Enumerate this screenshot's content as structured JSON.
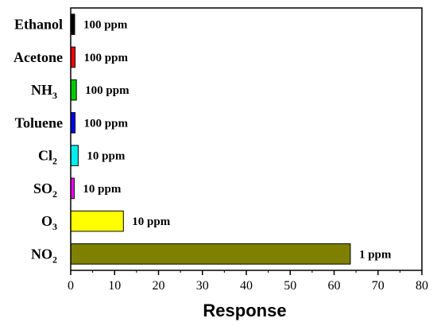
{
  "chart_data": {
    "type": "bar",
    "orientation": "horizontal",
    "categories": [
      {
        "label": "Ethanol",
        "sub": ""
      },
      {
        "label": "Acetone",
        "sub": ""
      },
      {
        "label": "NH",
        "sub": "3"
      },
      {
        "label": "Toluene",
        "sub": ""
      },
      {
        "label": "Cl",
        "sub": "2"
      },
      {
        "label": "SO",
        "sub": "2"
      },
      {
        "label": "O",
        "sub": "3"
      },
      {
        "label": "NO",
        "sub": "2"
      }
    ],
    "values": [
      0.9,
      1.0,
      1.3,
      1.0,
      1.7,
      0.8,
      12.0,
      63.7
    ],
    "bar_colors": [
      "#000000",
      "#ff0000",
      "#00cc00",
      "#0000ff",
      "#00eeee",
      "#ff00ff",
      "#ffff00",
      "#808000"
    ],
    "data_labels": [
      "100 ppm",
      "100 ppm",
      "100 ppm",
      "100 ppm",
      "10 ppm",
      "10 ppm",
      "10 ppm",
      "1 ppm"
    ],
    "title": "",
    "xlabel": "Response",
    "ylabel": "",
    "xlim": [
      0,
      80
    ],
    "xticks": [
      0,
      10,
      20,
      30,
      40,
      50,
      60,
      70,
      80
    ],
    "grid": false,
    "legend": "none"
  }
}
